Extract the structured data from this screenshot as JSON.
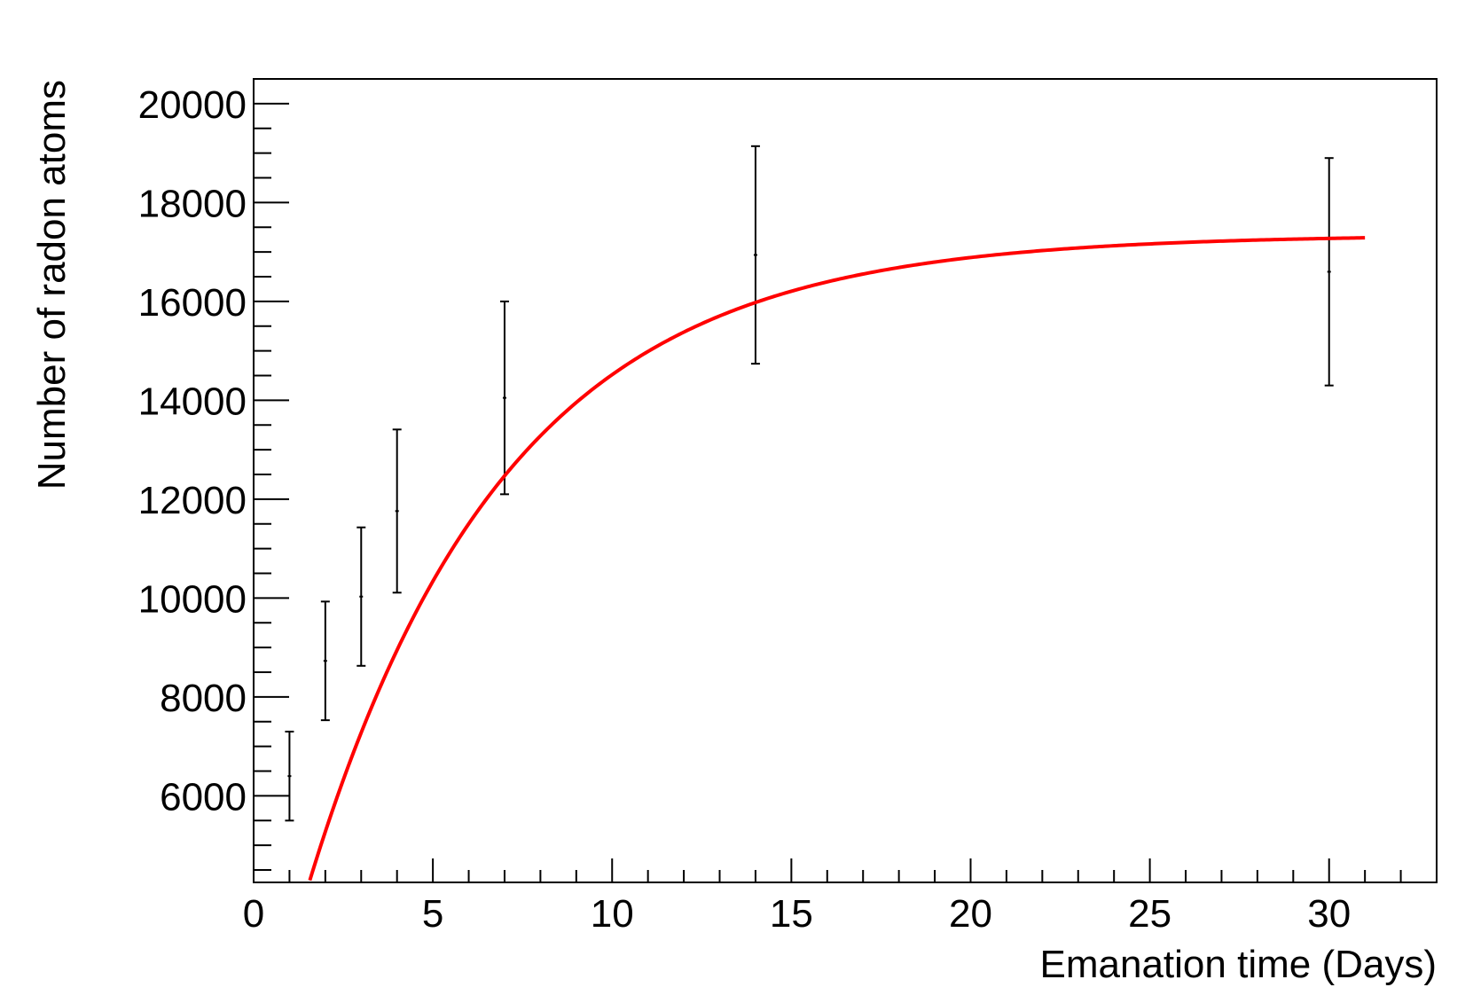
{
  "chart_data": {
    "type": "scatter",
    "xlabel": "Emanation time (Days)",
    "ylabel": "Number of radon atoms",
    "xlim": [
      0,
      33
    ],
    "ylim": [
      4250,
      20500
    ],
    "x_major_ticks": [
      0,
      5,
      10,
      15,
      20,
      25,
      30
    ],
    "x_tick_labels": [
      "0",
      "5",
      "10",
      "15",
      "20",
      "25",
      "30"
    ],
    "x_minor_step": 1,
    "y_major_ticks": [
      6000,
      8000,
      10000,
      12000,
      14000,
      16000,
      18000,
      20000
    ],
    "y_tick_labels": [
      "6000",
      "8000",
      "10000",
      "12000",
      "14000",
      "16000",
      "18000",
      "20000"
    ],
    "y_minor_step": 500,
    "grid": false,
    "series": [
      {
        "kind": "points_with_errors",
        "color": "#000000",
        "x": [
          1,
          2,
          3,
          4,
          7,
          14,
          30
        ],
        "y": [
          6400,
          8730,
          10030,
          11760,
          14050,
          16940,
          16600
        ],
        "y_err_low": [
          900,
          1200,
          1400,
          1650,
          1950,
          2200,
          2300
        ],
        "y_err_high": [
          900,
          1200,
          1400,
          1650,
          1950,
          2200,
          2300
        ]
      },
      {
        "kind": "fit_curve",
        "color": "#ff0000",
        "function": "A*(1-exp(-ln2*t/T))",
        "A": 17350,
        "T": 3.824,
        "x_range": [
          0.5,
          31
        ]
      }
    ]
  }
}
